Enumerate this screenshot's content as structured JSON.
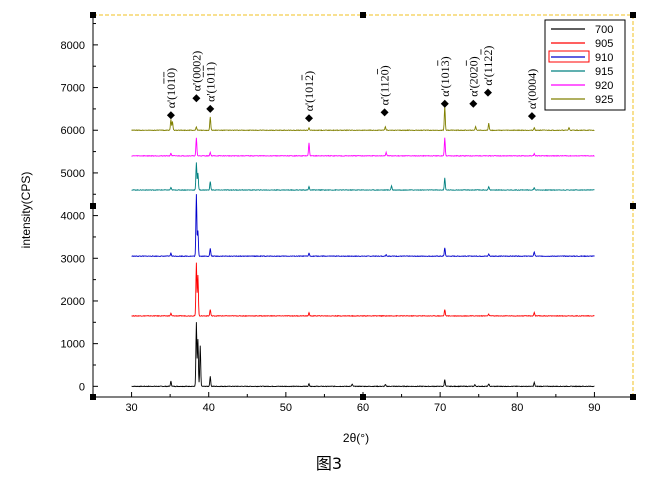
{
  "caption": "图3",
  "colors": {
    "frame": "#f0c020",
    "handle": "#000000"
  },
  "chart_data": {
    "type": "line",
    "title": "",
    "xlabel": "2θ(°)",
    "ylabel": "intensity(CPS)",
    "xlim": [
      25,
      95
    ],
    "ylim": [
      -250,
      8700
    ],
    "xticks": [
      30,
      40,
      50,
      60,
      70,
      80,
      90
    ],
    "yticks": [
      0,
      1000,
      2000,
      3000,
      4000,
      5000,
      6000,
      7000,
      8000
    ],
    "legend_position": "top-right",
    "series": [
      {
        "name": "700",
        "color": "#000000",
        "baseline": 0,
        "peaks": [
          [
            35.1,
            120
          ],
          [
            38.4,
            1500
          ],
          [
            38.6,
            1100
          ],
          [
            38.9,
            950
          ],
          [
            40.2,
            230
          ],
          [
            53.0,
            60
          ],
          [
            58.6,
            50
          ],
          [
            62.9,
            40
          ],
          [
            70.6,
            160
          ],
          [
            74.5,
            40
          ],
          [
            76.3,
            60
          ],
          [
            82.2,
            90
          ]
        ]
      },
      {
        "name": "905",
        "color": "#ff0000",
        "baseline": 1650,
        "peaks": [
          [
            35.1,
            60
          ],
          [
            38.4,
            1250
          ],
          [
            38.6,
            950
          ],
          [
            40.2,
            150
          ],
          [
            53.0,
            70
          ],
          [
            70.6,
            150
          ],
          [
            76.3,
            40
          ],
          [
            82.2,
            80
          ]
        ]
      },
      {
        "name": "910",
        "color": "#0000cc",
        "baseline": 3050,
        "peaks": [
          [
            35.1,
            70
          ],
          [
            38.4,
            1450
          ],
          [
            38.6,
            600
          ],
          [
            40.2,
            180
          ],
          [
            53.0,
            70
          ],
          [
            63.0,
            40
          ],
          [
            70.6,
            200
          ],
          [
            76.3,
            50
          ],
          [
            82.2,
            100
          ]
        ]
      },
      {
        "name": "915",
        "color": "#008080",
        "baseline": 4600,
        "peaks": [
          [
            35.1,
            60
          ],
          [
            38.4,
            650
          ],
          [
            38.6,
            400
          ],
          [
            40.2,
            200
          ],
          [
            53.0,
            80
          ],
          [
            63.7,
            100
          ],
          [
            70.6,
            280
          ],
          [
            76.3,
            80
          ],
          [
            82.2,
            60
          ]
        ]
      },
      {
        "name": "920",
        "color": "#ff00ff",
        "baseline": 5400,
        "peaks": [
          [
            35.1,
            60
          ],
          [
            38.4,
            420
          ],
          [
            40.2,
            80
          ],
          [
            53.0,
            300
          ],
          [
            63.0,
            80
          ],
          [
            70.6,
            420
          ],
          [
            82.2,
            50
          ]
        ]
      },
      {
        "name": "925",
        "color": "#808000",
        "baseline": 6000,
        "peaks": [
          [
            35.1,
            260
          ],
          [
            35.3,
            200
          ],
          [
            38.4,
            80
          ],
          [
            40.2,
            320
          ],
          [
            53.0,
            60
          ],
          [
            62.9,
            80
          ],
          [
            70.6,
            560
          ],
          [
            74.6,
            90
          ],
          [
            76.3,
            160
          ],
          [
            82.2,
            60
          ],
          [
            86.7,
            60
          ]
        ]
      }
    ],
    "annotations": [
      {
        "label": "α'(10$1$0)",
        "text": "α'(1010)",
        "bar": [
          1,
          2
        ],
        "x": 35.1,
        "y": 6350
      },
      {
        "label": "α'(0002)",
        "text": "α'(0002)",
        "bar": [],
        "x": 38.4,
        "y": 6750
      },
      {
        "label": "α'(1011)",
        "text": "α'(1011)",
        "bar": [
          1,
          2
        ],
        "x": 40.2,
        "y": 6500
      },
      {
        "label": "α'(1012)",
        "text": "α'(1012)",
        "bar": [
          2
        ],
        "x": 53.0,
        "y": 6280
      },
      {
        "label": "α'(1120)",
        "text": "α'(1120)",
        "bar": [
          2
        ],
        "x": 62.8,
        "y": 6420
      },
      {
        "label": "α'(1013)",
        "text": "α'(1013)",
        "bar": [
          2
        ],
        "x": 70.6,
        "y": 6620
      },
      {
        "label": "α'(2020)",
        "text": "α'(2020)",
        "bar": [
          2
        ],
        "x": 74.3,
        "y": 6620
      },
      {
        "label": "α'(1122)",
        "text": "α'(1122)",
        "bar": [
          2
        ],
        "x": 76.2,
        "y": 6880
      },
      {
        "label": "α'(0004)",
        "text": "α'(0004)",
        "bar": [],
        "x": 81.9,
        "y": 6330
      }
    ]
  }
}
